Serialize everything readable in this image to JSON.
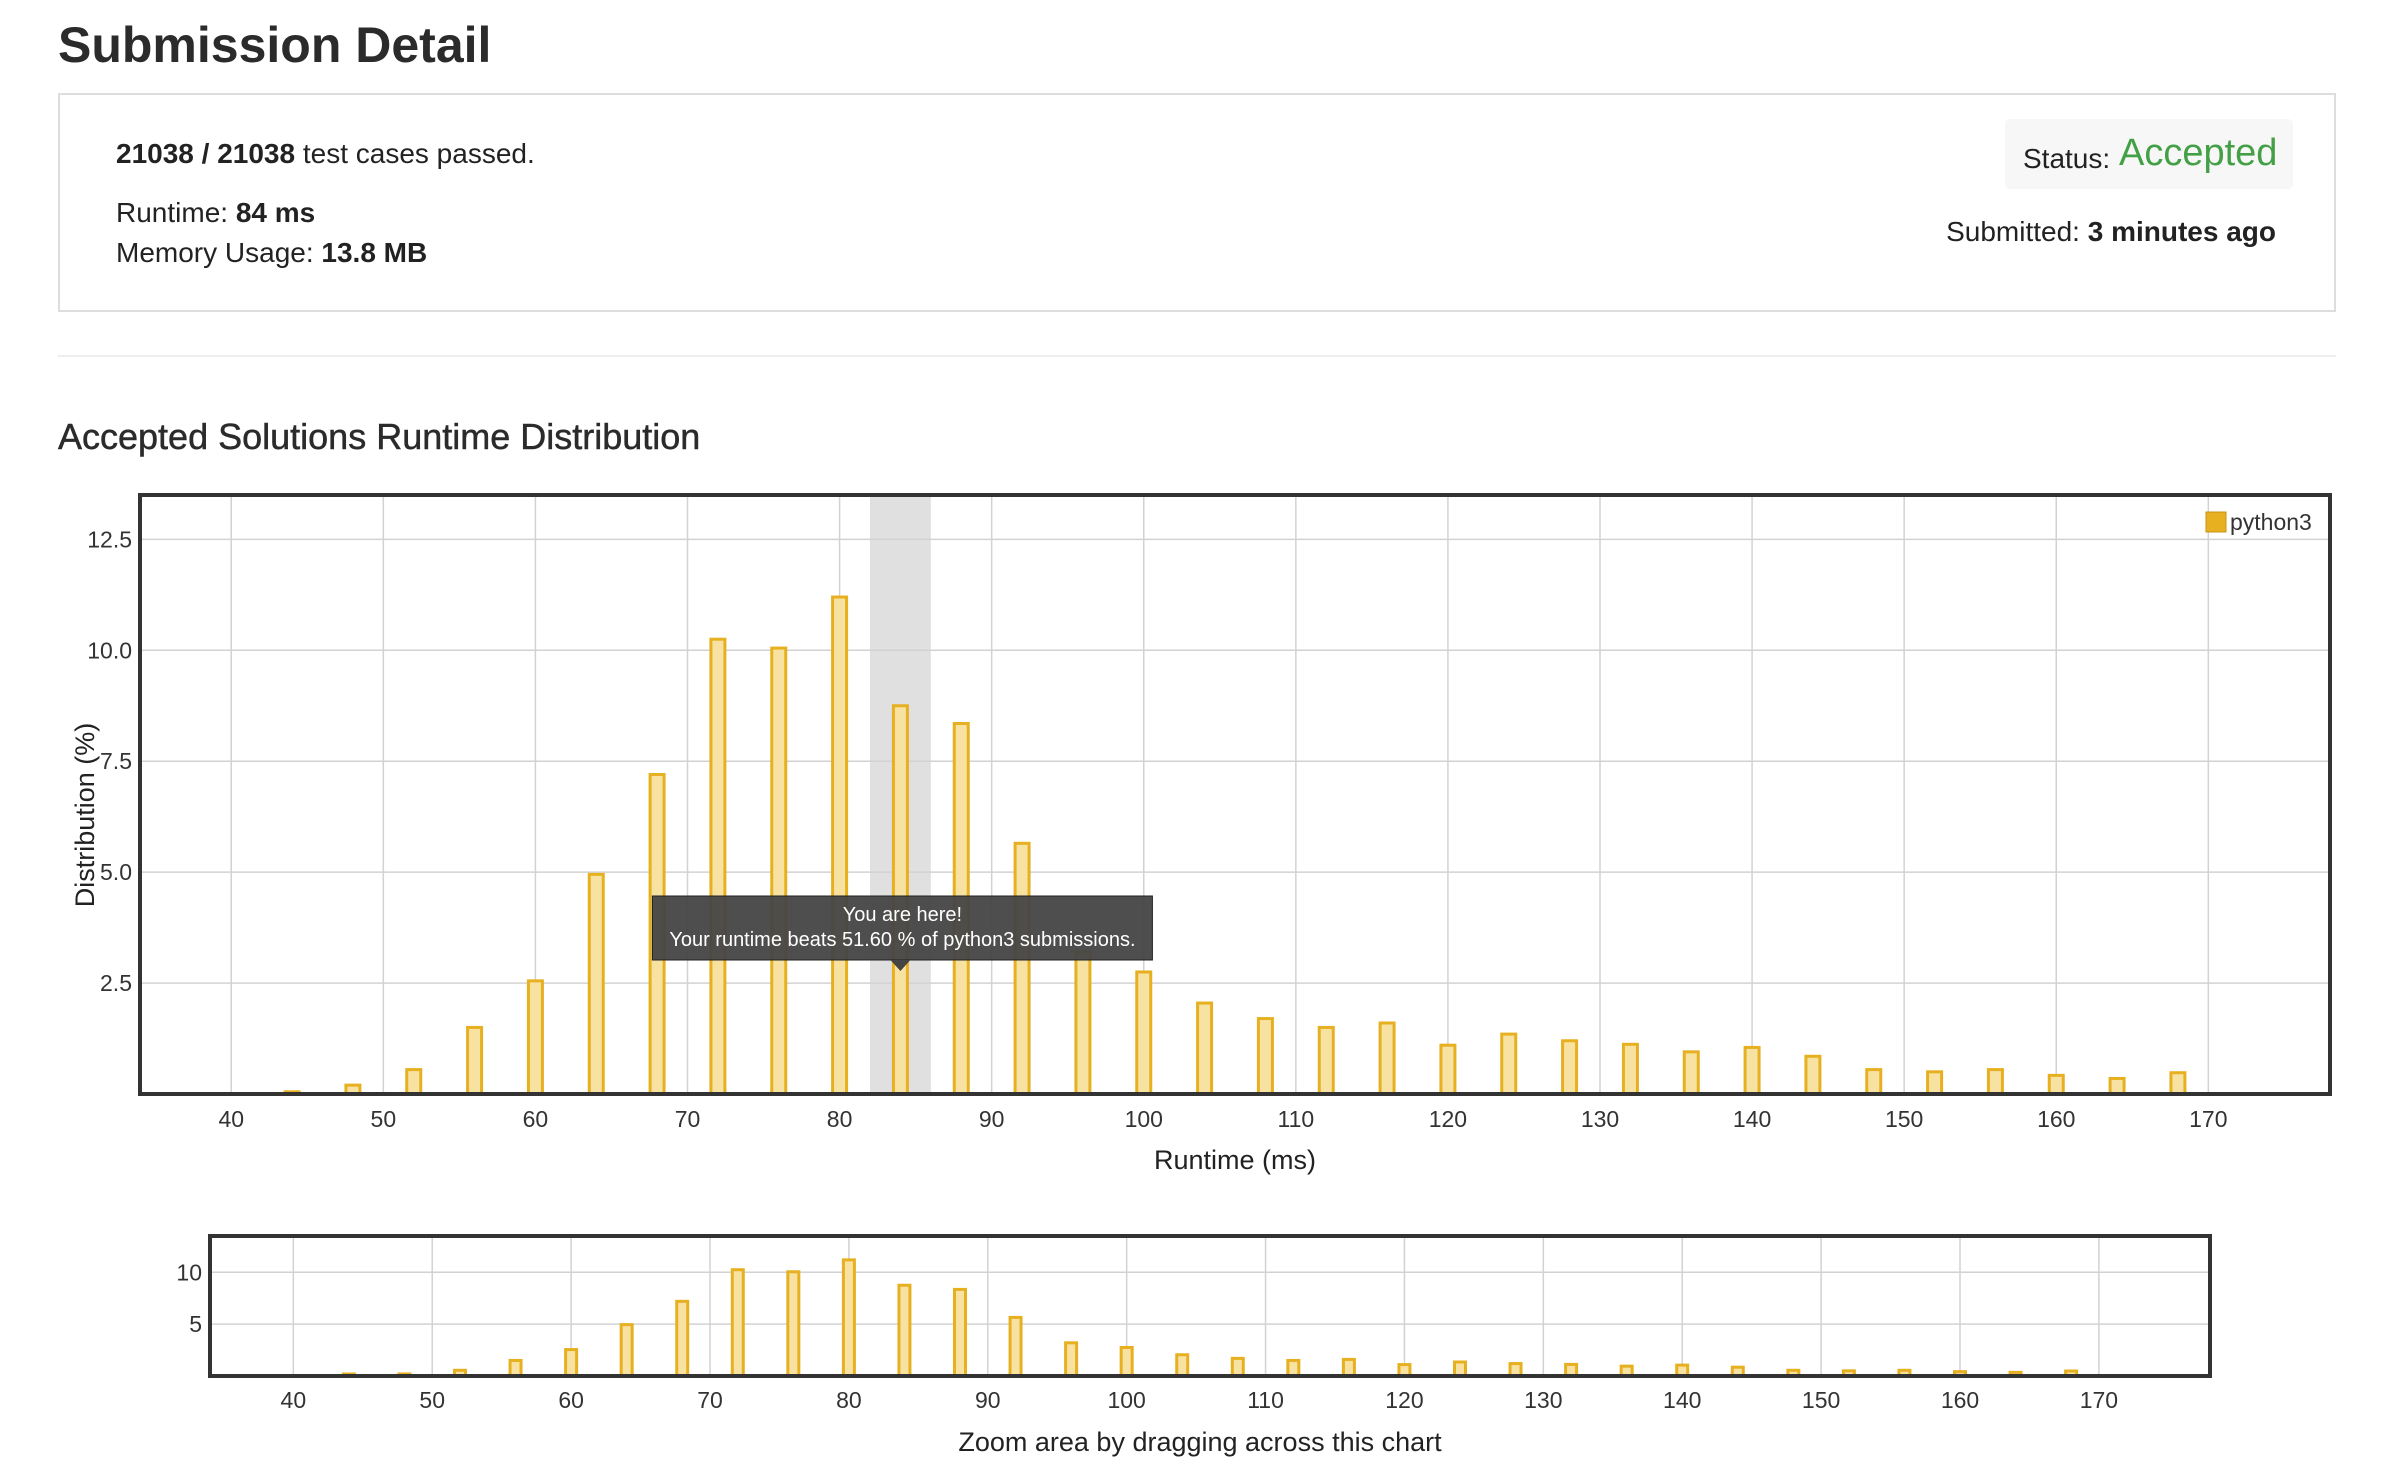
{
  "page": {
    "title": "Submission Detail"
  },
  "summary": {
    "tests_passed_count": "21038 / 21038",
    "tests_passed_text": " test cases passed.",
    "runtime_label": "Runtime: ",
    "runtime_value": "84 ms",
    "memory_label": "Memory Usage: ",
    "memory_value": "13.8 MB",
    "status_label": "Status: ",
    "status_value": "Accepted",
    "submitted_label": "Submitted: ",
    "submitted_value": "3 minutes ago"
  },
  "colors": {
    "accent": "#e6b020",
    "bar_fill": "#f8e2a2",
    "status_green": "#43a047",
    "highlight": "#e0e0e0",
    "tooltip_bg": "#444444"
  },
  "distribution": {
    "title": "Accepted Solutions Runtime Distribution",
    "tooltip_line1": "You are here!",
    "tooltip_line2": "Your runtime beats 51.60 % of python3 submissions.",
    "navigator_caption": "Zoom area by dragging across this chart"
  },
  "chart_data": [
    {
      "type": "bar",
      "role": "main",
      "xlabel": "Runtime (ms)",
      "ylabel": "Distribution (%)",
      "xlim": [
        34,
        178
      ],
      "ylim": [
        0,
        13.5
      ],
      "x_ticks": [
        40,
        50,
        60,
        70,
        80,
        90,
        100,
        110,
        120,
        130,
        140,
        150,
        160,
        170
      ],
      "y_ticks": [
        2.5,
        5.0,
        7.5,
        10.0,
        12.5
      ],
      "y_tick_labels": [
        "2.5",
        "5.0",
        "7.5",
        "10.0",
        "12.5"
      ],
      "grid": true,
      "legend_position": "top-right",
      "highlight_range": [
        82,
        86
      ],
      "series": [
        {
          "name": "python3",
          "x": [
            44,
            48,
            52,
            56,
            60,
            64,
            68,
            72,
            76,
            80,
            84,
            88,
            92,
            96,
            100,
            104,
            108,
            112,
            116,
            120,
            124,
            128,
            132,
            136,
            140,
            144,
            148,
            152,
            156,
            160,
            164,
            168
          ],
          "values": [
            0.05,
            0.2,
            0.55,
            1.5,
            2.55,
            4.95,
            7.2,
            10.25,
            10.05,
            11.2,
            8.75,
            8.35,
            5.65,
            3.2,
            2.75,
            2.05,
            1.7,
            1.5,
            1.6,
            1.1,
            1.35,
            1.2,
            1.12,
            0.95,
            1.05,
            0.85,
            0.55,
            0.5,
            0.55,
            0.42,
            0.35,
            0.48
          ]
        }
      ]
    },
    {
      "type": "bar",
      "role": "navigator",
      "xlabel": "Zoom area by dragging across this chart",
      "xlim": [
        34,
        178
      ],
      "ylim": [
        0,
        13.5
      ],
      "x_ticks": [
        40,
        50,
        60,
        70,
        80,
        90,
        100,
        110,
        120,
        130,
        140,
        150,
        160,
        170
      ],
      "y_ticks": [
        5,
        10
      ],
      "y_tick_labels": [
        "5",
        "10"
      ],
      "grid": true,
      "series": [
        {
          "name": "python3",
          "x": [
            44,
            48,
            52,
            56,
            60,
            64,
            68,
            72,
            76,
            80,
            84,
            88,
            92,
            96,
            100,
            104,
            108,
            112,
            116,
            120,
            124,
            128,
            132,
            136,
            140,
            144,
            148,
            152,
            156,
            160,
            164,
            168
          ],
          "values": [
            0.05,
            0.2,
            0.55,
            1.5,
            2.55,
            4.95,
            7.2,
            10.25,
            10.05,
            11.2,
            8.75,
            8.35,
            5.65,
            3.2,
            2.75,
            2.05,
            1.7,
            1.5,
            1.6,
            1.1,
            1.35,
            1.2,
            1.12,
            0.95,
            1.05,
            0.85,
            0.55,
            0.5,
            0.55,
            0.42,
            0.35,
            0.48
          ]
        }
      ]
    }
  ]
}
